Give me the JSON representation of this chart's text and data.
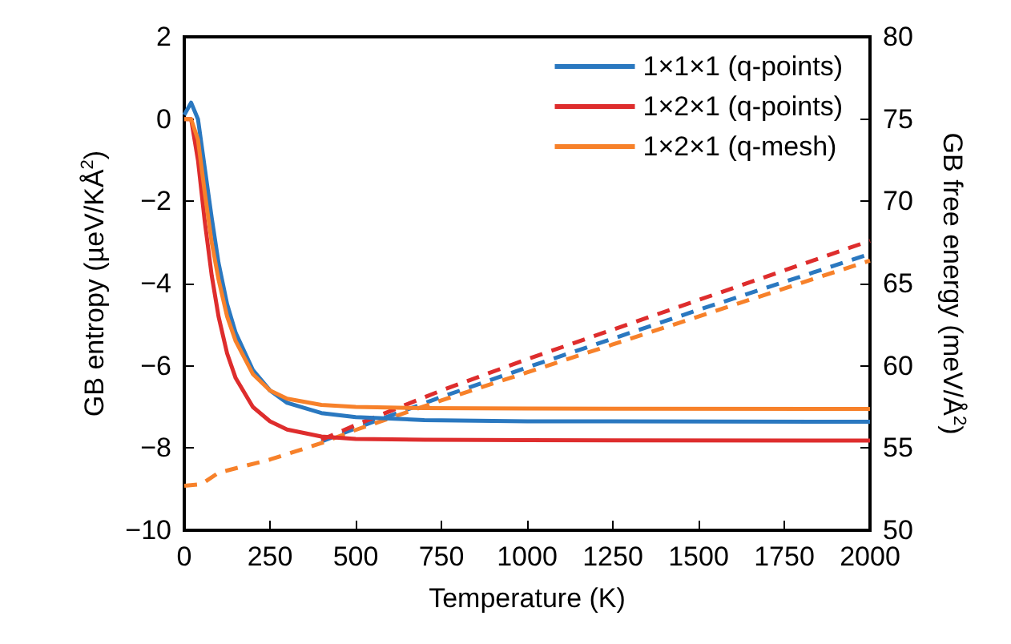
{
  "chart_data": {
    "type": "line",
    "xlabel": "Temperature (K)",
    "ylabel": "GB entropy (µeV/KÅ$^{2}$)",
    "y2label": "GB free energy (meV/Å$^{2}$)",
    "xlim": [
      0,
      2000
    ],
    "xticks": [
      0,
      250,
      500,
      750,
      1000,
      1250,
      1500,
      1750,
      2000
    ],
    "ylim": [
      -10,
      2
    ],
    "yticks": [
      -10,
      -8,
      -6,
      -4,
      -2,
      0,
      2
    ],
    "y2lim": [
      50,
      80
    ],
    "y2ticks": [
      50,
      55,
      60,
      65,
      70,
      75,
      80
    ],
    "grid": false,
    "legend": "top right",
    "marker": "none",
    "series": [
      {
        "name": "1×1×1 (q-points)",
        "color": "#2a78c0",
        "line_style": "solid",
        "x": [
          0,
          20,
          40,
          60,
          80,
          100,
          125,
          150,
          200,
          250,
          300,
          400,
          500,
          700,
          1000,
          2000
        ],
        "values": [
          0.1,
          0.4,
          0,
          -1.2,
          -2.4,
          -3.5,
          -4.5,
          -5.2,
          -6.1,
          -6.6,
          -6.9,
          -7.15,
          -7.25,
          -7.32,
          -7.35,
          -7.36
        ]
      },
      {
        "name": "1×2×1 (q-points)",
        "color": "#de2d2d",
        "line_style": "solid",
        "x": [
          0,
          20,
          40,
          60,
          80,
          100,
          125,
          150,
          200,
          250,
          300,
          400,
          500,
          700,
          1000,
          2000
        ],
        "values": [
          0,
          0,
          -1,
          -2.5,
          -3.8,
          -4.8,
          -5.7,
          -6.3,
          -7.0,
          -7.35,
          -7.55,
          -7.72,
          -7.78,
          -7.8,
          -7.81,
          -7.82
        ]
      },
      {
        "name": "1×2×1 (q-mesh)",
        "color": "#f7812a",
        "line_style": "solid",
        "x": [
          0,
          20,
          40,
          60,
          80,
          100,
          125,
          150,
          200,
          250,
          300,
          400,
          500,
          700,
          1000,
          2000
        ],
        "values": [
          0,
          0,
          -0.5,
          -1.8,
          -3.0,
          -3.9,
          -4.8,
          -5.4,
          -6.2,
          -6.6,
          -6.8,
          -6.95,
          -7.0,
          -7.03,
          -7.04,
          -7.05
        ]
      },
      {
        "color": "#2a78c0",
        "line_style": "dashed",
        "axis": "y2",
        "x": [
          400,
          500,
          750,
          1000,
          1500,
          2000
        ],
        "values": [
          55.4,
          56.2,
          58.1,
          59.9,
          63.4,
          66.8
        ]
      },
      {
        "color": "#de2d2d",
        "line_style": "dashed",
        "axis": "y2",
        "x": [
          400,
          500,
          750,
          1000,
          1500,
          2000
        ],
        "values": [
          55.5,
          56.4,
          58.5,
          60.4,
          64.0,
          67.6
        ]
      },
      {
        "color": "#f7812a",
        "line_style": "dashed",
        "axis": "y2",
        "x": [
          0,
          50,
          100,
          250,
          400,
          500,
          750,
          1000,
          1500,
          2000
        ],
        "values": [
          52.7,
          52.8,
          53.5,
          54.3,
          55.3,
          56.1,
          57.9,
          59.6,
          63.0,
          66.4
        ]
      }
    ]
  }
}
